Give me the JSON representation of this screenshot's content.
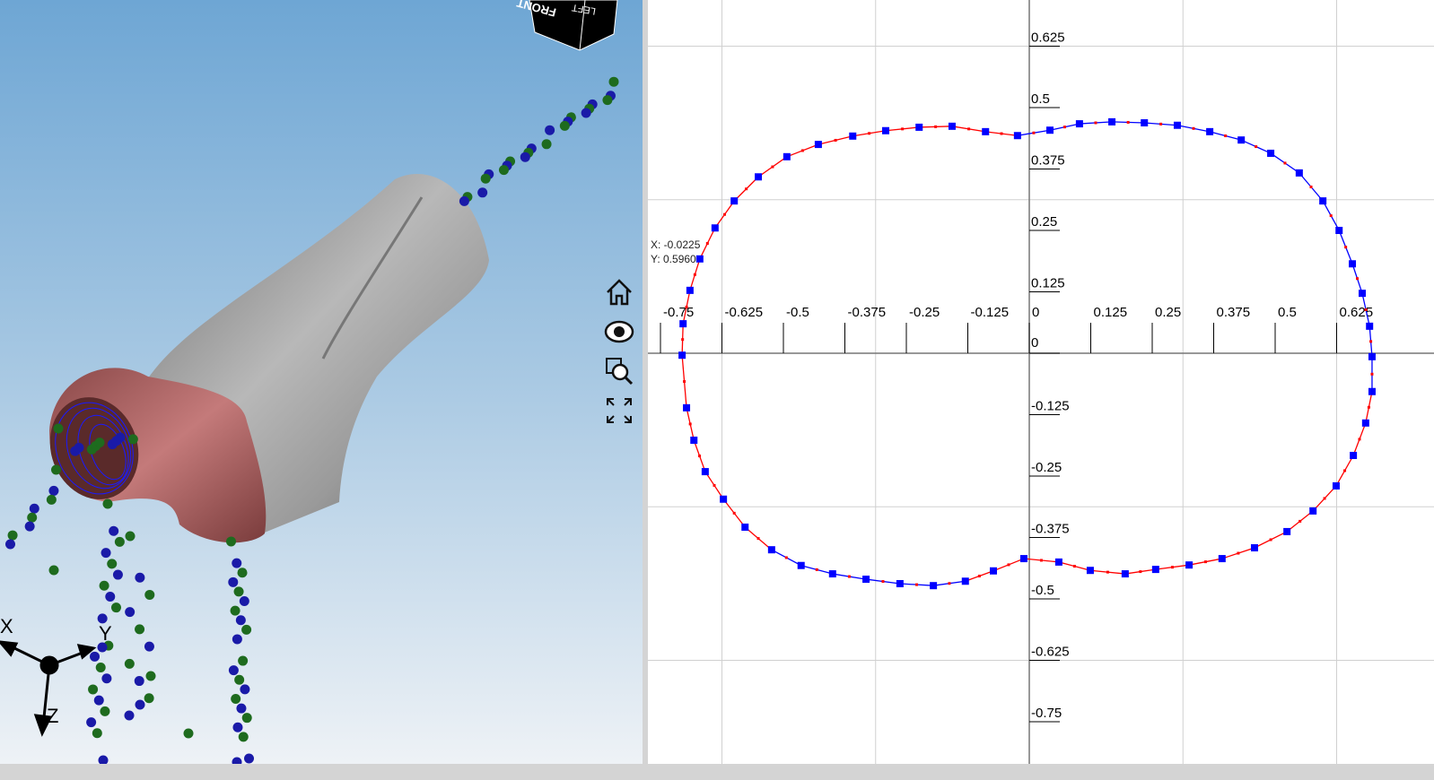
{
  "viewport": {
    "view_cube": {
      "front_label": "FRONT",
      "left_label": "LEFT"
    },
    "nav_icons": [
      "home-icon",
      "eye-icon",
      "zoom-window-icon",
      "fit-all-icon"
    ],
    "triad": {
      "x_label": "X",
      "y_label": "Y",
      "z_label": "Z"
    },
    "colors": {
      "tube": "#8c8c8c",
      "elbow": "#b46464",
      "points_green": "#1e6b1e",
      "points_blue": "#1a1aa8",
      "section": "#1a1aff"
    }
  },
  "plot": {
    "readout": {
      "x": "X: -0.0225",
      "y": "Y: 0.5960"
    },
    "chart_data": {
      "type": "line",
      "x_ticks": [
        "-0.75",
        "-0.625",
        "-0.5",
        "-0.375",
        "-0.25",
        "-0.125",
        "0",
        "0.125",
        "0.25",
        "0.375",
        "0.5",
        "0.625"
      ],
      "x_tick_values": [
        -0.75,
        -0.625,
        -0.5,
        -0.375,
        -0.25,
        -0.125,
        0,
        0.125,
        0.25,
        0.375,
        0.5,
        0.625
      ],
      "y_ticks": [
        "0.625",
        "0.5",
        "0.375",
        "0.25",
        "0.125",
        "0",
        "-0.125",
        "-0.25",
        "-0.375",
        "-0.5",
        "-0.625",
        "-0.75"
      ],
      "y_tick_values": [
        0.625,
        0.5,
        0.375,
        0.25,
        0.125,
        0,
        -0.125,
        -0.25,
        -0.375,
        -0.5,
        -0.625,
        -0.75
      ],
      "grid_step": 0.3125,
      "grid": true,
      "xlim": [
        -0.775,
        0.77
      ],
      "ylim": [
        -0.84,
        0.72
      ],
      "line_color": "#ff0000",
      "alt_line_color": "#0000ff",
      "marker_color": "#0000ff",
      "closed": true,
      "points": [
        [
          -0.639,
          0.255
        ],
        [
          -0.6,
          0.31
        ],
        [
          -0.551,
          0.359
        ],
        [
          -0.493,
          0.4
        ],
        [
          -0.429,
          0.425
        ],
        [
          -0.359,
          0.442
        ],
        [
          -0.292,
          0.453
        ],
        [
          -0.224,
          0.46
        ],
        [
          -0.157,
          0.462
        ],
        [
          -0.089,
          0.451
        ],
        [
          -0.024,
          0.443
        ],
        [
          0.042,
          0.454
        ],
        [
          0.102,
          0.467
        ],
        [
          0.168,
          0.471
        ],
        [
          0.234,
          0.469
        ],
        [
          0.301,
          0.464
        ],
        [
          0.367,
          0.451
        ],
        [
          0.431,
          0.434
        ],
        [
          0.491,
          0.407
        ],
        [
          0.549,
          0.367
        ],
        [
          0.597,
          0.31
        ],
        [
          0.63,
          0.25
        ],
        [
          0.657,
          0.182
        ],
        [
          0.677,
          0.122
        ],
        [
          0.692,
          0.055
        ],
        [
          0.697,
          -0.007
        ],
        [
          0.697,
          -0.078
        ],
        [
          0.684,
          -0.142
        ],
        [
          0.659,
          -0.208
        ],
        [
          0.624,
          -0.27
        ],
        [
          0.577,
          -0.321
        ],
        [
          0.524,
          -0.363
        ],
        [
          0.458,
          -0.396
        ],
        [
          0.392,
          -0.418
        ],
        [
          0.325,
          -0.431
        ],
        [
          0.257,
          -0.44
        ],
        [
          0.195,
          -0.449
        ],
        [
          0.124,
          -0.442
        ],
        [
          0.06,
          -0.425
        ],
        [
          -0.011,
          -0.418
        ],
        [
          -0.073,
          -0.443
        ],
        [
          -0.13,
          -0.464
        ],
        [
          -0.195,
          -0.473
        ],
        [
          -0.263,
          -0.469
        ],
        [
          -0.332,
          -0.46
        ],
        [
          -0.4,
          -0.449
        ],
        [
          -0.464,
          -0.432
        ],
        [
          -0.524,
          -0.4
        ],
        [
          -0.578,
          -0.354
        ],
        [
          -0.622,
          -0.297
        ],
        [
          -0.659,
          -0.241
        ],
        [
          -0.682,
          -0.177
        ],
        [
          -0.697,
          -0.111
        ],
        [
          -0.706,
          -0.004
        ],
        [
          -0.704,
          0.06
        ],
        [
          -0.69,
          0.128
        ],
        [
          -0.67,
          0.192
        ]
      ],
      "alt_color_segments": [
        [
          10,
          26
        ],
        [
          41,
          47
        ]
      ]
    }
  }
}
